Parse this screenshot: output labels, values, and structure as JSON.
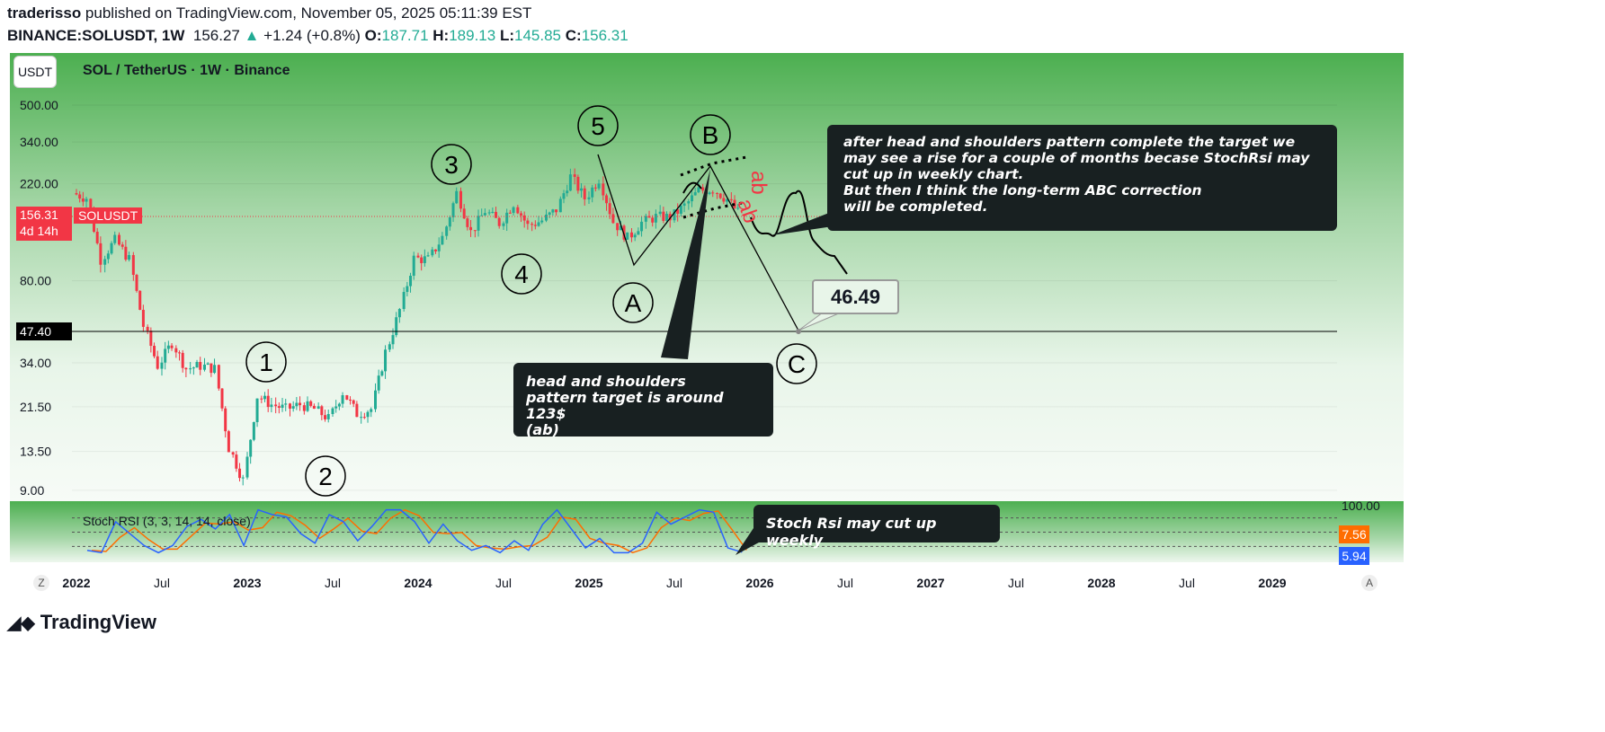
{
  "header": {
    "author": "traderisso",
    "published": " published on TradingView.com, November 05, 2025 05:11:39 EST",
    "symbol": "BINANCE:SOLUSDT, 1W",
    "last": "156.27",
    "change": "+1.24 (+0.8%)",
    "o_label": "O:",
    "o": "187.71",
    "h_label": "H:",
    "h": "189.13",
    "l_label": "L:",
    "l": "145.85",
    "c_label": "C:",
    "c": "156.31"
  },
  "chart": {
    "currency_button": "USDT",
    "title": "SOL / TetherUS · 1W · Binance",
    "price_label": "156.31",
    "countdown": "4d 14h",
    "symbol_tag": "SOLUSDT",
    "level_label": "47.40",
    "target_label": "46.49",
    "wave_labels": [
      "1",
      "2",
      "3",
      "4",
      "5",
      "A",
      "B",
      "C"
    ],
    "ab_labels": [
      "ab",
      "ab"
    ],
    "annotations": {
      "main": [
        "after head and shoulders pattern complete the target we",
        "may see a rise for a couple of months becase StochRsi may",
        "cut up in weekly chart.",
        "But then I think the long-term ABC correction",
        "will be completed."
      ],
      "hs": [
        "head and shoulders",
        "pattern target is around 123$",
        "(ab)"
      ],
      "stoch": "Stoch Rsi may cut up weekly"
    },
    "colors": {
      "up": "#22ab94",
      "down": "#f23645",
      "bg_top": "#4caf50",
      "k": "#2962ff",
      "d": "#ff6d00"
    },
    "bottom_left": "Z",
    "bottom_right": "A"
  },
  "chart_data": {
    "type": "candlestick",
    "scale": "log",
    "price_ticks": [
      500,
      340,
      220,
      80,
      34,
      21.5,
      13.5,
      9
    ],
    "price_tick_labels": [
      "500.00",
      "340.00",
      "220.00",
      "80.00",
      "34.00",
      "21.50",
      "13.50",
      "9.00"
    ],
    "time_ticks": [
      {
        "t": 2022.0,
        "label": "2022"
      },
      {
        "t": 2022.5,
        "label": "Jul"
      },
      {
        "t": 2023.0,
        "label": "2023"
      },
      {
        "t": 2023.5,
        "label": "Jul"
      },
      {
        "t": 2024.0,
        "label": "2024"
      },
      {
        "t": 2024.5,
        "label": "Jul"
      },
      {
        "t": 2025.0,
        "label": "2025"
      },
      {
        "t": 2025.5,
        "label": "Jul"
      },
      {
        "t": 2026.0,
        "label": "2026"
      },
      {
        "t": 2026.5,
        "label": "Jul"
      },
      {
        "t": 2027.0,
        "label": "2027"
      },
      {
        "t": 2027.5,
        "label": "Jul"
      },
      {
        "t": 2028.0,
        "label": "2028"
      },
      {
        "t": 2028.5,
        "label": "Jul"
      },
      {
        "t": 2029.0,
        "label": "2029"
      }
    ],
    "monthly_closes": [
      190,
      100,
      122,
      100,
      50,
      33,
      42,
      32,
      33,
      32,
      14,
      10,
      24,
      22,
      21,
      22,
      21,
      19,
      25,
      20,
      21,
      38,
      59,
      101,
      100,
      126,
      200,
      133,
      166,
      146,
      180,
      142,
      150,
      168,
      237,
      189,
      232,
      148,
      125,
      147,
      156,
      155,
      175,
      205,
      208,
      187,
      156
    ],
    "first_month": "2022-01",
    "horizontal_level": 47.4,
    "projection_target": 46.49,
    "stoch_rsi": {
      "label": "Stoch RSI (3, 3, 14, 14, close)",
      "max_label": "100.00",
      "k_last": "5.94",
      "d_last": "7.56",
      "k_monthly": [
        10,
        5,
        70,
        45,
        20,
        5,
        20,
        60,
        75,
        55,
        85,
        20,
        95,
        85,
        80,
        45,
        25,
        85,
        70,
        30,
        60,
        95,
        95,
        70,
        25,
        65,
        30,
        10,
        20,
        5,
        30,
        10,
        65,
        95,
        55,
        15,
        35,
        5,
        5,
        25,
        90,
        65,
        80,
        95,
        90,
        15,
        6
      ]
    }
  }
}
